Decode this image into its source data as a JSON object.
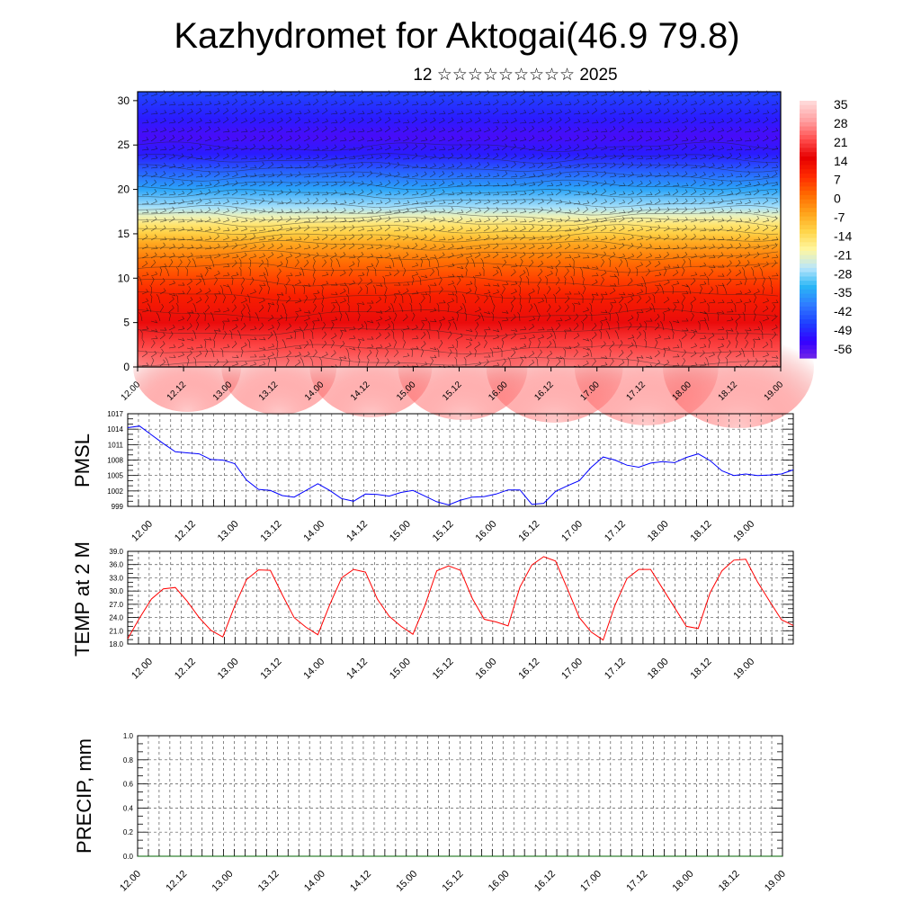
{
  "title": "Kazhydromet for Aktogai(46.9 79.8)",
  "subtitle": "12 ☆☆☆☆☆☆☆☆☆ 2025",
  "time_labels": [
    "12.00",
    "12.12",
    "13.00",
    "13.12",
    "14.00",
    "14.12",
    "15.00",
    "15.12",
    "16.00",
    "16.12",
    "17.00",
    "17.12",
    "18.00",
    "18.12",
    "19.00"
  ],
  "colors": {
    "pmsl_line": "#0000ff",
    "temp_line": "#ff0000",
    "precip_line": "#006400",
    "colorbar": [
      "#7a2be5",
      "#3300ff",
      "#1e40ff",
      "#2f7bff",
      "#29b6f6",
      "#b9e6fb",
      "#fff7a1",
      "#ffd54a",
      "#ffa31a",
      "#ff6a00",
      "#ff2a00",
      "#e60000",
      "#ff4d4d",
      "#ff9ea0",
      "#ffd7d7"
    ]
  },
  "chart_data": [
    {
      "type": "heatmap",
      "title": "",
      "xlabel": "",
      "ylabel": "",
      "x": [
        "12.00",
        "12.12",
        "13.00",
        "13.12",
        "14.00",
        "14.12",
        "15.00",
        "15.12",
        "16.00",
        "16.12",
        "17.00",
        "17.12",
        "18.00",
        "18.12",
        "19.00"
      ],
      "y_ticks": [
        "0",
        "5",
        "10",
        "15",
        "20",
        "25",
        "30"
      ],
      "ylim": [
        0,
        31
      ],
      "colorbar_labels": [
        "35",
        "28",
        "21",
        "14",
        "7",
        "0",
        "-7",
        "-14",
        "-21",
        "-28",
        "-35",
        "-42",
        "-49",
        "-56"
      ],
      "vertical_profile": {
        "levels": [
          0,
          2,
          5,
          8,
          10,
          12,
          14,
          15,
          16,
          17,
          18,
          20,
          22,
          24,
          26,
          28,
          31
        ],
        "values": [
          30,
          24,
          18,
          12,
          7,
          2,
          -5,
          -10,
          -14,
          -20,
          -26,
          -34,
          -42,
          -50,
          -55,
          -50,
          -45
        ]
      },
      "overlay": "wind barbs and isotherms",
      "grid": false
    },
    {
      "type": "line",
      "title": "",
      "xlabel": "",
      "ylabel": "PMSL",
      "x": [
        "12.00",
        "12.03",
        "12.06",
        "12.09",
        "12.12",
        "12.15",
        "12.18",
        "12.21",
        "13.00",
        "13.03",
        "13.06",
        "13.09",
        "13.12",
        "13.15",
        "13.18",
        "13.21",
        "14.00",
        "14.03",
        "14.06",
        "14.09",
        "14.12",
        "14.15",
        "14.18",
        "14.21",
        "15.00",
        "15.03",
        "15.06",
        "15.09",
        "15.12",
        "15.15",
        "15.18",
        "15.21",
        "16.00",
        "16.03",
        "16.06",
        "16.09",
        "16.12",
        "16.15",
        "16.18",
        "16.21",
        "17.00",
        "17.03",
        "17.06",
        "17.09",
        "17.12",
        "17.15",
        "17.18",
        "17.21",
        "18.00",
        "18.03",
        "18.06",
        "18.09",
        "18.12",
        "18.15",
        "18.18",
        "18.21",
        "19.00"
      ],
      "series": [
        {
          "values": [
            1014.3,
            1014.6,
            1012.9,
            1011.2,
            1009.6,
            1009.4,
            1009.2,
            1008.1,
            1008.0,
            1007.3,
            1004.1,
            1002.3,
            1002.1,
            1001.1,
            1000.8,
            1002.1,
            1003.4,
            1002.1,
            1000.5,
            1000.0,
            1001.4,
            1001.3,
            1001.0,
            1001.7,
            1002.1,
            1001.0,
            999.9,
            999.3,
            1000.2,
            1000.8,
            1000.9,
            1001.4,
            1002.2,
            1002.2,
            999.4,
            999.6,
            1001.9,
            1003.0,
            1004.0,
            1006.6,
            1008.6,
            1008.0,
            1007.0,
            1006.6,
            1007.4,
            1007.7,
            1007.5,
            1008.5,
            1009.2,
            1007.9,
            1005.9,
            1005.0,
            1005.3,
            1005.0,
            1005.1,
            1005.3,
            1006.1
          ]
        }
      ],
      "y_ticks": [
        "999",
        "1002",
        "1005",
        "1008",
        "1011",
        "1014",
        "1017"
      ],
      "ylim": [
        999,
        1017
      ],
      "grid": true
    },
    {
      "type": "line",
      "title": "",
      "xlabel": "",
      "ylabel": "TEMP at 2 M",
      "x": [
        "12.00",
        "12.03",
        "12.06",
        "12.09",
        "12.12",
        "12.15",
        "12.18",
        "12.21",
        "13.00",
        "13.03",
        "13.06",
        "13.09",
        "13.12",
        "13.15",
        "13.18",
        "13.21",
        "14.00",
        "14.03",
        "14.06",
        "14.09",
        "14.12",
        "14.15",
        "14.18",
        "14.21",
        "15.00",
        "15.03",
        "15.06",
        "15.09",
        "15.12",
        "15.15",
        "15.18",
        "15.21",
        "16.00",
        "16.03",
        "16.06",
        "16.09",
        "16.12",
        "16.15",
        "16.18",
        "16.21",
        "17.00",
        "17.03",
        "17.06",
        "17.09",
        "17.12",
        "17.15",
        "17.18",
        "17.21",
        "18.00",
        "18.03",
        "18.06",
        "18.09",
        "18.12",
        "18.15",
        "18.18",
        "18.21",
        "19.00"
      ],
      "series": [
        {
          "values": [
            19.2,
            23.9,
            28.2,
            30.5,
            30.8,
            27.7,
            24.0,
            21.1,
            19.6,
            26.6,
            32.6,
            34.8,
            34.7,
            29.2,
            24.0,
            21.8,
            20.1,
            26.9,
            33.0,
            34.9,
            34.3,
            28.2,
            24.3,
            22.0,
            20.2,
            26.7,
            34.6,
            35.7,
            34.7,
            28.3,
            23.6,
            23.0,
            22.1,
            30.9,
            35.9,
            37.8,
            36.8,
            30.5,
            24.0,
            20.7,
            18.9,
            26.8,
            32.8,
            34.9,
            34.9,
            30.6,
            26.3,
            22.0,
            21.5,
            29.6,
            34.6,
            37.0,
            37.2,
            32.0,
            27.7,
            23.5,
            22.2
          ]
        }
      ],
      "y_ticks": [
        "18.0",
        "21.0",
        "24.0",
        "27.0",
        "30.0",
        "33.0",
        "36.0",
        "39.0"
      ],
      "ylim": [
        18,
        39
      ],
      "grid": true
    },
    {
      "type": "line",
      "title": "",
      "xlabel": "",
      "ylabel": "PRECIP, mm",
      "x": [
        "12.00",
        "12.12",
        "13.00",
        "13.12",
        "14.00",
        "14.12",
        "15.00",
        "15.12",
        "16.00",
        "16.12",
        "17.00",
        "17.12",
        "18.00",
        "18.12",
        "19.00"
      ],
      "series": [
        {
          "values": [
            0,
            0,
            0,
            0,
            0,
            0,
            0,
            0,
            0,
            0,
            0,
            0,
            0,
            0,
            0
          ]
        }
      ],
      "y_ticks": [
        "0.0",
        "0.2",
        "0.4",
        "0.6",
        "0.8",
        "1.0"
      ],
      "ylim": [
        0,
        1
      ],
      "grid": true
    }
  ]
}
